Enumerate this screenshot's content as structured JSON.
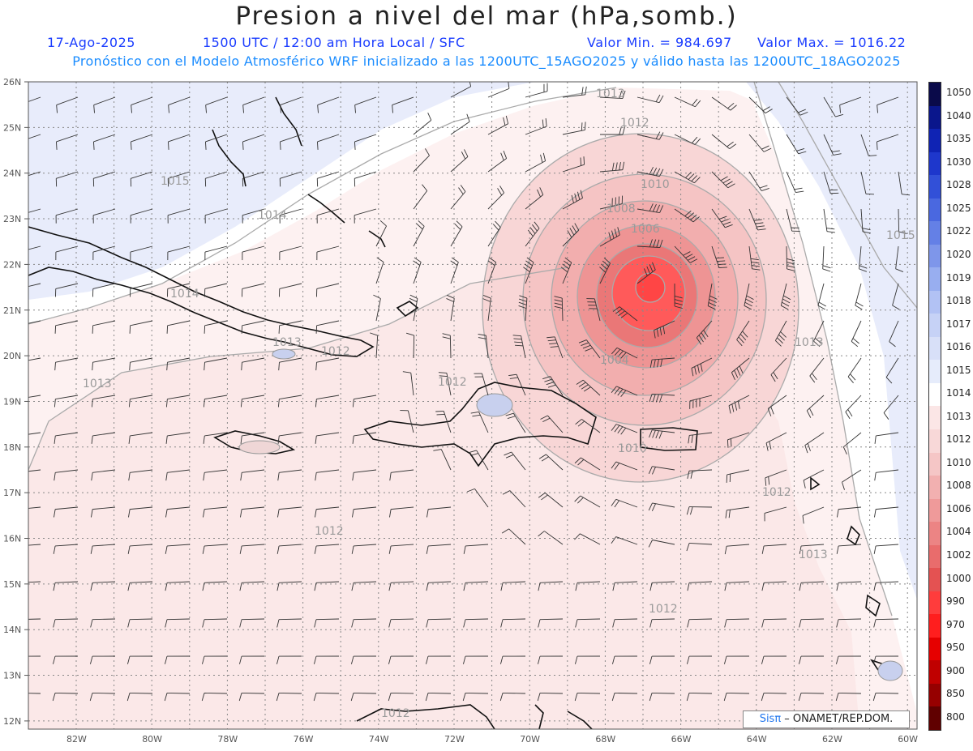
{
  "header": {
    "title": "Presion a nivel del mar (hPa,somb.)",
    "date": "17-Ago-2025",
    "time": "1500 UTC / 12:00 am Hora Local / SFC",
    "min": "Valor Min. = 984.697",
    "max": "Valor Max. = 1016.22",
    "model_line": "Pronóstico con el Modelo Atmosférico WRF inicializado a las 1200UTC_15AGO2025 y válido hasta las  1200UTC_18AGO2025"
  },
  "map": {
    "lat_labels": [
      "26N",
      "25N",
      "24N",
      "23N",
      "22N",
      "21N",
      "20N",
      "19N",
      "18N",
      "17N",
      "16N",
      "15N",
      "14N",
      "13N",
      "12N"
    ],
    "lon_labels": [
      "82W",
      "80W",
      "78W",
      "76W",
      "74W",
      "72W",
      "70W",
      "68W",
      "66W",
      "64W",
      "62W",
      "60W"
    ],
    "contour_labels": [
      "1013",
      "1012",
      "1015",
      "1014",
      "1010",
      "1008",
      "1006",
      "1004",
      "1014",
      "1013",
      "1012",
      "1012",
      "1013",
      "1013",
      "1012",
      "1012",
      "1010",
      "1012",
      "1012",
      "1013",
      "1015"
    ],
    "low_center": {
      "lat": 21.6,
      "lon": -67.0
    },
    "min_pressure_hpa": 984.697
  },
  "colorbar": {
    "levels": [
      "1050",
      "1040",
      "1035",
      "1030",
      "1028",
      "1025",
      "1022",
      "1020",
      "1019",
      "1018",
      "1017",
      "1016",
      "1015",
      "1014",
      "1013",
      "1012",
      "1010",
      "1008",
      "1006",
      "1004",
      "1002",
      "1000",
      "990",
      "970",
      "950",
      "900",
      "850",
      "800"
    ],
    "colors": [
      "#0a0a4a",
      "#0a168c",
      "#0f23b4",
      "#1e37cc",
      "#3250d8",
      "#4a68e0",
      "#6480e6",
      "#7e96ea",
      "#98aef0",
      "#b2c2f4",
      "#c6d2f6",
      "#d8e0f8",
      "#e6ecfb",
      "#ffffff",
      "#fbe6e6",
      "#f8d8d8",
      "#f5c6c6",
      "#f2b0b0",
      "#ef9a9a",
      "#ec8484",
      "#e96c6c",
      "#e45252",
      "#ff3c3c",
      "#ff1e1e",
      "#e60000",
      "#c00000",
      "#960000",
      "#600000"
    ]
  },
  "credit": {
    "sis": "Sisπ",
    "rest": " – ONAMET/REP.DOM."
  }
}
